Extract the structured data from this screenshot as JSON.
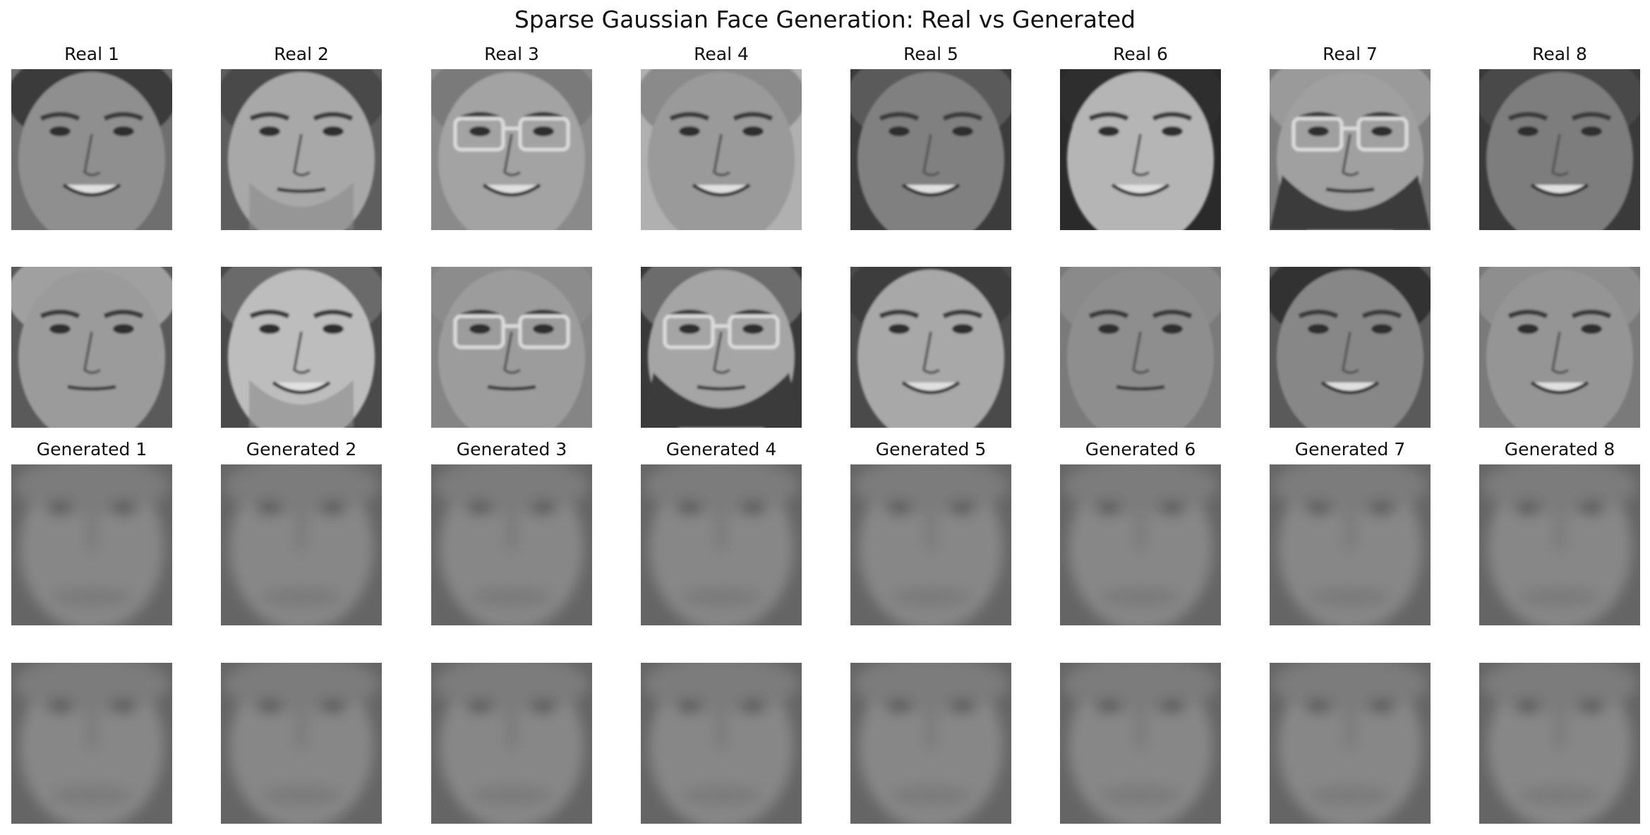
{
  "title": "Sparse Gaussian Face Generation: Real vs Generated",
  "real_titles": [
    "Real 1",
    "Real 2",
    "Real 3",
    "Real 4",
    "Real 5",
    "Real 6",
    "Real 7",
    "Real 8"
  ],
  "generated_titles": [
    "Generated 1",
    "Generated 2",
    "Generated 3",
    "Generated 4",
    "Generated 5",
    "Generated 6",
    "Generated 7",
    "Generated 8"
  ],
  "real_rows": [
    [
      {
        "subject": "real-face",
        "tone": "#8f8f8f",
        "bg": "#6f6f6f",
        "hair": "#3a3a3a",
        "glasses": false,
        "beard": "none",
        "smile": true
      },
      {
        "subject": "real-face",
        "tone": "#a8a8a8",
        "bg": "#5e5e5e",
        "hair": "#4a4a4a",
        "glasses": false,
        "beard": "stubble",
        "smile": false
      },
      {
        "subject": "real-face",
        "tone": "#a3a3a3",
        "bg": "#8a8a8a",
        "hair": "#7a7a7a",
        "glasses": true,
        "beard": "none",
        "smile": true
      },
      {
        "subject": "real-face",
        "tone": "#9a9a9a",
        "bg": "#b0b0b0",
        "hair": "#8a8a8a",
        "glasses": false,
        "beard": "none",
        "smile": true
      },
      {
        "subject": "real-face",
        "tone": "#808080",
        "bg": "#3c3c3c",
        "hair": "#5a5a5a",
        "glasses": false,
        "beard": "none",
        "smile": true
      },
      {
        "subject": "real-face",
        "tone": "#b5b5b5",
        "bg": "#2a2a2a",
        "hair": "#2e2e2e",
        "glasses": false,
        "beard": "none",
        "smile": true
      },
      {
        "subject": "real-face",
        "tone": "#a0a0a0",
        "bg": "#7c7c7c",
        "hair": "#9a9a9a",
        "glasses": true,
        "beard": "full",
        "smile": false
      },
      {
        "subject": "real-face",
        "tone": "#7d7d7d",
        "bg": "#3a3a3a",
        "hair": "#4a4a4a",
        "glasses": false,
        "beard": "none",
        "smile": true
      }
    ],
    [
      {
        "subject": "real-face",
        "tone": "#9b9b9b",
        "bg": "#5a5a5a",
        "hair": "#a0a0a0",
        "glasses": false,
        "beard": "none",
        "smile": false
      },
      {
        "subject": "real-face",
        "tone": "#bdbdbd",
        "bg": "#4a4a4a",
        "hair": "#6a6a6a",
        "glasses": false,
        "beard": "stubble",
        "smile": true
      },
      {
        "subject": "real-face",
        "tone": "#9c9c9c",
        "bg": "#858585",
        "hair": "#8c8c8c",
        "glasses": true,
        "beard": "none",
        "smile": false
      },
      {
        "subject": "real-face",
        "tone": "#a5a5a5",
        "bg": "#3a3a3a",
        "hair": "#6c6c6c",
        "glasses": true,
        "beard": "heavy",
        "smile": false
      },
      {
        "subject": "real-face",
        "tone": "#a8a8a8",
        "bg": "#4a4a4a",
        "hair": "#3e3e3e",
        "glasses": false,
        "beard": "none",
        "smile": true
      },
      {
        "subject": "real-face",
        "tone": "#8e8e8e",
        "bg": "#7a7a7a",
        "hair": "#8a8a8a",
        "glasses": false,
        "beard": "none",
        "smile": false
      },
      {
        "subject": "real-face",
        "tone": "#878787",
        "bg": "#5a5a5a",
        "hair": "#333333",
        "glasses": false,
        "beard": "none",
        "smile": true
      },
      {
        "subject": "real-face",
        "tone": "#959595",
        "bg": "#7a7a7a",
        "hair": "#8e8e8e",
        "glasses": false,
        "beard": "none",
        "smile": true
      }
    ]
  ],
  "generated_style": {
    "tone": "#878787",
    "bg": "#656565",
    "eyes": "#555555",
    "smile": false
  }
}
